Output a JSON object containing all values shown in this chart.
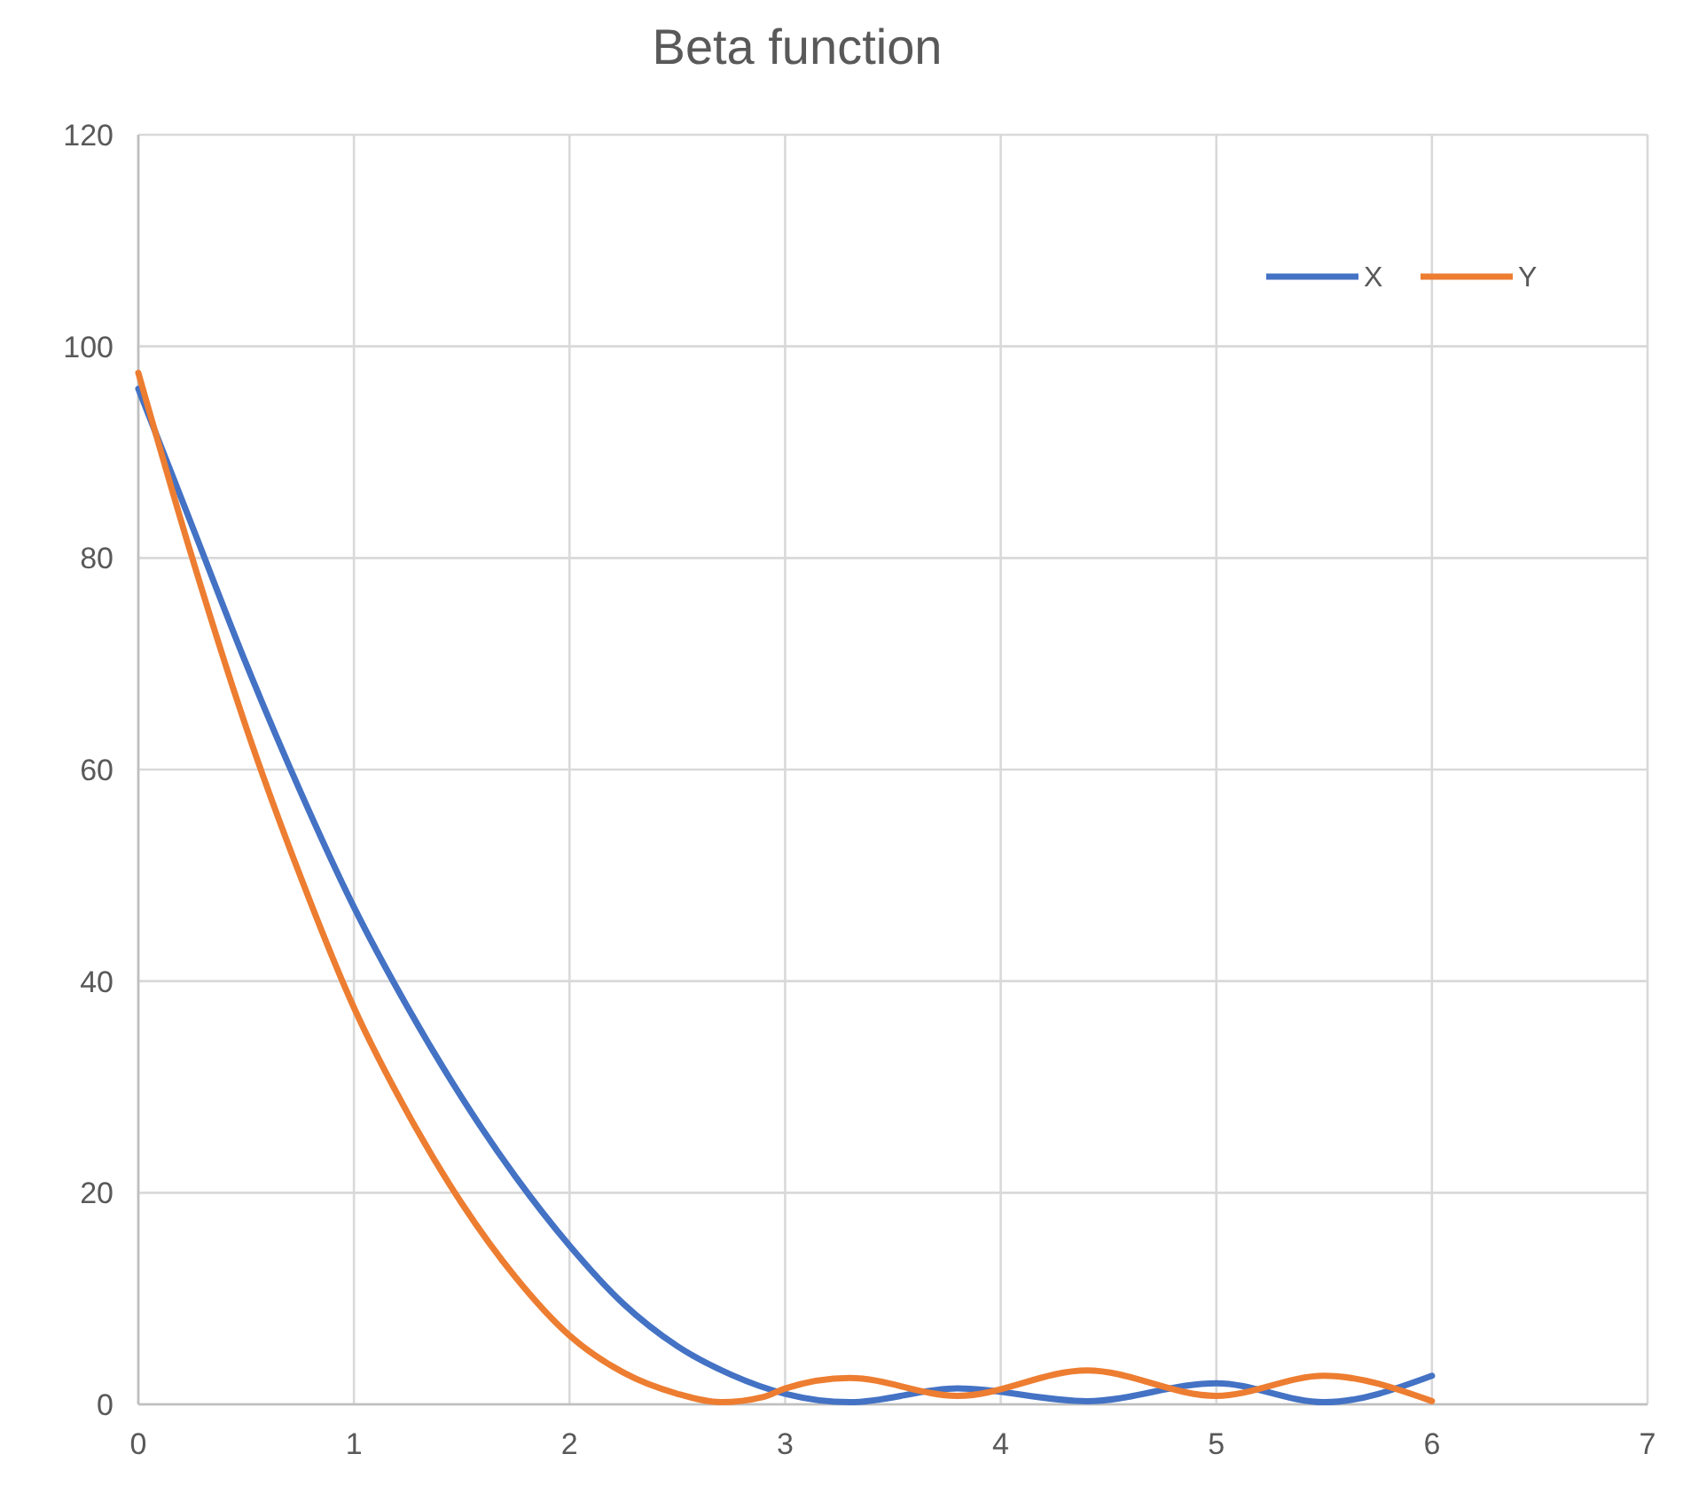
{
  "chart_data": {
    "type": "line",
    "title": "Beta function",
    "xlim": [
      0,
      7
    ],
    "xticks": [
      0,
      1,
      2,
      3,
      4,
      5,
      6,
      7
    ],
    "ylim": [
      0,
      120
    ],
    "yticks": [
      0,
      20,
      40,
      60,
      80,
      100,
      120
    ],
    "grid": true,
    "legend": "top right",
    "line_style": "solid",
    "marker": "none",
    "series": [
      {
        "name": "X",
        "color": "#4472c4",
        "x": [
          0,
          0.25,
          0.5,
          0.75,
          1,
          1.25,
          1.5,
          1.75,
          2,
          2.25,
          2.5,
          2.75,
          3,
          3.3,
          3.8,
          4.4,
          5,
          5.5,
          6
        ],
        "values": [
          96,
          83,
          70,
          58,
          47,
          37.5,
          29,
          21.5,
          15,
          9.5,
          5.5,
          2.8,
          1,
          0.2,
          1.5,
          0.3,
          2,
          0.2,
          2.7
        ]
      },
      {
        "name": "Y",
        "color": "#ed7d31",
        "x": [
          0,
          0.25,
          0.5,
          0.75,
          1,
          1.25,
          1.5,
          1.75,
          2,
          2.25,
          2.5,
          2.7,
          2.9,
          3,
          3.3,
          3.8,
          4.4,
          5,
          5.5,
          6
        ],
        "values": [
          97.5,
          80,
          64,
          50,
          37.5,
          27.5,
          19,
          12,
          6.5,
          3,
          1,
          0.2,
          0.7,
          1.5,
          2.5,
          0.8,
          3.2,
          0.8,
          2.7,
          0.3
        ]
      }
    ]
  }
}
